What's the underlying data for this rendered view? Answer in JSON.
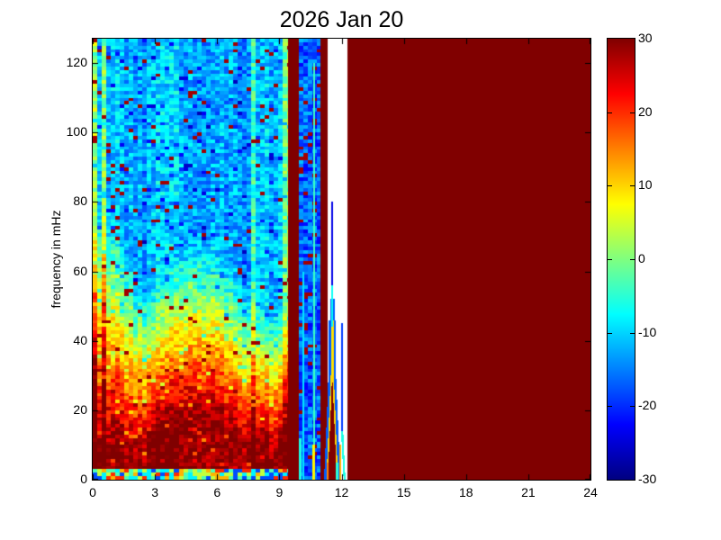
{
  "figure": {
    "background": "#ffffff",
    "title": "2026 Jan 20"
  },
  "chart_data": {
    "type": "heatmap",
    "title": "2026 Jan 20",
    "xlabel": "",
    "ylabel": "frequency in mHz",
    "xlim": [
      0,
      24
    ],
    "ylim": [
      0,
      127
    ],
    "x_ticks": [
      0,
      3,
      6,
      9,
      12,
      15,
      18,
      21,
      24
    ],
    "y_ticks": [
      0,
      20,
      40,
      60,
      80,
      100,
      120
    ],
    "grid": false,
    "colorbar": {
      "min": -30,
      "max": 30,
      "ticks": [
        30,
        20,
        10,
        0,
        -10,
        -20,
        -30
      ],
      "colormap": "jet",
      "position": "right",
      "gradient_stops": [
        {
          "u": 0.0,
          "color": "#000080"
        },
        {
          "u": 0.125,
          "color": "#0000ff"
        },
        {
          "u": 0.375,
          "color": "#00ffff"
        },
        {
          "u": 0.625,
          "color": "#ffff00"
        },
        {
          "u": 0.875,
          "color": "#ff0000"
        },
        {
          "u": 1.0,
          "color": "#800000"
        }
      ]
    },
    "regions": [
      {
        "t_range_h": [
          0,
          9.4
        ],
        "description": "broadband noise spectrogram: saturated ~+30 dB below ~10 mHz, warm orange/red dome reaching ~18 mHz near 5 h, fading through yellow/green near 40 mHz to cyan/blue (~-10 to -15 dB) above 60 mHz, scattered dark-red and dark-blue speckles"
      },
      {
        "t_range_h": [
          0.4,
          0.6
        ],
        "description": "bright yellow-green vertical stripe"
      },
      {
        "t_range_h": [
          7.6,
          7.9
        ],
        "description": "yellow-orange vertical stripe"
      },
      {
        "t_range_h": [
          9.1,
          9.4
        ],
        "description": "yellow-green vertical stripe at end of noise field"
      },
      {
        "t_range_h": [
          9.4,
          9.95
        ],
        "description": "saturated dark-red band (+30 dB)"
      },
      {
        "t_range_h": [
          9.95,
          11.0
        ],
        "description": "dark-blue band (~-17 dB) with red speckles and lighter cyan vertical lines"
      },
      {
        "t_range_h": [
          11.0,
          11.3
        ],
        "description": "saturated dark-red band"
      },
      {
        "t_range_h": [
          11.3,
          11.85
        ],
        "description": "funnel-shaped spike: dark-red core to ~30 mHz with yellow and blue rims, thin line extending to ~80 mHz"
      },
      {
        "t_range_h": [
          11.85,
          12.3
        ],
        "description": "second narrow blue/cyan spike up to ~45 mHz curving at its base"
      },
      {
        "t_range_h": [
          12.3,
          24
        ],
        "description": "uniform saturated dark red (+30 dB, no data)"
      }
    ],
    "heatmap_model": {
      "grid": {
        "time_cell_h": 0.2182,
        "freq_cell_mhz": 1,
        "n_freq_bins": 127,
        "seed": 1337
      },
      "noise_field": {
        "t_end": 9.42,
        "v_max": 30,
        "v_floor_high_freq": -12,
        "decay_db": 40,
        "floor_base_mhz": 7,
        "dome": {
          "center_h": 5.2,
          "amp_mhz": 11,
          "width_h": 2.0
        },
        "decay_width_base_mhz": 40,
        "decay_left_boost": {
          "amp_mhz": 28,
          "center_h": 0.5,
          "width_h": 1.4
        },
        "decay_mid_boost": {
          "amp_mhz": 10,
          "center_h": 5.2,
          "width_h": 2.2
        },
        "noise_amp_db": 5,
        "column_streak_db": 3,
        "red_speckle": {
          "prob": 0.03,
          "value_db": 28
        },
        "blue_speckle": {
          "prob": 0.06,
          "delta_db": -9
        }
      },
      "vertical_stripes": [
        {
          "t_start": 0.0,
          "t_end": 0.18,
          "boost_db": 14
        },
        {
          "t_start": 0.38,
          "t_end": 0.62,
          "boost_db": 12
        },
        {
          "t_start": 7.62,
          "t_end": 7.92,
          "boost_db": 10
        },
        {
          "t_start": 9.08,
          "t_end": 9.42,
          "boost_db": 13
        }
      ],
      "bottom_stripe": {
        "t_end": 9.42,
        "f_max_mhz": 3,
        "palette_db": [
          -18,
          -8,
          -3,
          4,
          12,
          20
        ]
      },
      "saturated_value_db": 30,
      "saturated_bands": [
        {
          "t_start": 9.42,
          "t_end": 9.95
        },
        {
          "t_start": 11.0,
          "t_end": 11.32
        },
        {
          "t_start": 12.3,
          "t_end": 24.0
        }
      ],
      "blue_band": {
        "t_start": 9.95,
        "t_end": 11.0,
        "mean_db": -17,
        "noise_db": 6,
        "red_speckle": {
          "prob": 0.07,
          "value_db": 28
        },
        "lines": [
          {
            "t_center": 10.68,
            "width_h": 0.07,
            "f_max_mhz": 120,
            "value_db": -4
          },
          {
            "t_center": 10.15,
            "width_h": 0.06,
            "f_max_mhz": 60,
            "value_db": -9
          }
        ],
        "bottom_patches": [
          {
            "t_start": 9.95,
            "t_end": 10.06,
            "f_max_mhz": 12,
            "value_db": -6
          },
          {
            "t_start": 10.6,
            "t_end": 10.72,
            "f_max_mhz": 10,
            "value_db": 8
          }
        ]
      },
      "spike1": {
        "t_center": 11.55,
        "core": {
          "top_mhz": 30,
          "half_width_h": 0.21,
          "value_db": 30
        },
        "yellow_rim": {
          "top_mhz": 46,
          "width_h": 0.07,
          "value_db": 10
        },
        "blue_rim": {
          "top_mhz": 52,
          "width_h": 0.11,
          "value_db": -17
        },
        "line": {
          "top_mhz": 80,
          "half_width_h": 0.035,
          "segments": [
            {
              "f_min": 56,
              "f_max": 80,
              "value_db": -24
            },
            {
              "f_min": 44,
              "f_max": 56,
              "value_db": -7
            },
            {
              "f_min": 30,
              "f_max": 44,
              "value_db": 9
            }
          ]
        },
        "base_patches": [
          {
            "t_start": 11.27,
            "t_end": 11.37,
            "f_max_mhz": 5,
            "value_db": 15
          },
          {
            "t_start": 11.73,
            "t_end": 11.83,
            "f_max_mhz": 5,
            "value_db": -5
          }
        ]
      },
      "spike2": {
        "t_center": 12.02,
        "line": {
          "f_min": 14,
          "f_max": 45,
          "half_width_h": 0.04,
          "value_db": -19
        },
        "curve": {
          "f_max": 14,
          "shift_h": 0.12,
          "half_width_h": 0.05,
          "value_db": -6
        },
        "yellow_patch": {
          "t_start": 11.9,
          "t_end": 11.98,
          "f_max_mhz": 10,
          "value_db": 12
        }
      }
    }
  }
}
